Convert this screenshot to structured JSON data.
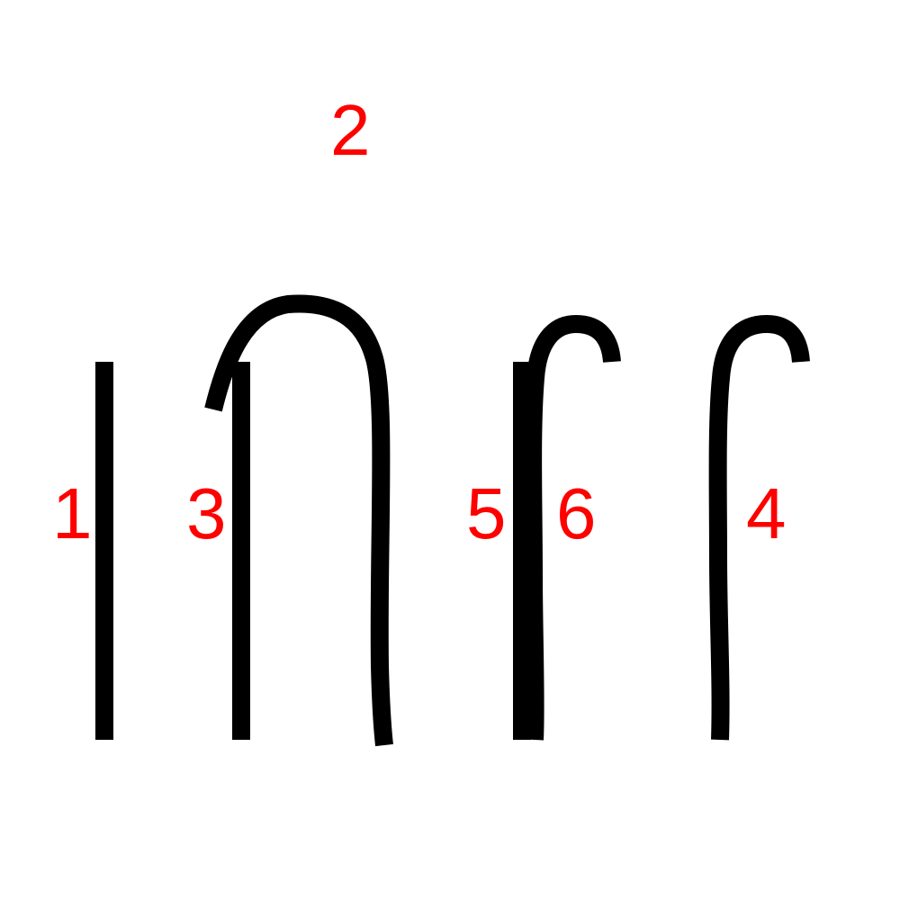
{
  "diagram": {
    "background": "#ffffff",
    "stroke_color": "#000000",
    "label_color": "#ff0000",
    "strokes": [
      {
        "id": "stroke-1",
        "label": "1",
        "shape": "straight vertical line"
      },
      {
        "id": "stroke-2",
        "label": "2",
        "shape": "arch (inverted U)"
      },
      {
        "id": "stroke-3",
        "label": "3",
        "shape": "straight vertical line"
      },
      {
        "id": "stroke-4",
        "label": "4",
        "shape": "hooked vertical line"
      },
      {
        "id": "stroke-5",
        "label": "5",
        "shape": "straight vertical line"
      },
      {
        "id": "stroke-6",
        "label": "6",
        "shape": "hooked vertical line"
      }
    ]
  }
}
